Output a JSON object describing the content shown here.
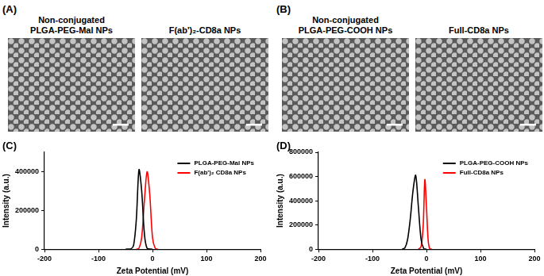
{
  "image_panels": [
    {
      "label": "(A)",
      "images": [
        {
          "caption": [
            "Non-conjugated",
            "PLGA-PEG-Mal NPs"
          ]
        },
        {
          "caption": [
            "F(ab')₂-CD8a  NPs"
          ]
        }
      ]
    },
    {
      "label": "(B)",
      "images": [
        {
          "caption": [
            "Non-conjugated",
            "PLGA-PEG-COOH  NPs"
          ]
        },
        {
          "caption": [
            "Full-CD8a  NPs"
          ]
        }
      ]
    }
  ],
  "chart_data": [
    {
      "type": "line",
      "title": "(C)",
      "x_label": "Zeta Potential (mV)",
      "y_label": "Intensity (a.u.)",
      "xlim": [
        -200,
        200
      ],
      "xticks": [
        -200,
        -100,
        0,
        100,
        200
      ],
      "ylim": [
        0,
        500000
      ],
      "yticks": [
        0,
        200000,
        400000
      ],
      "grid": false,
      "legend": "upper right",
      "series": [
        {
          "name": "PLGA-PEG-Mal NPs",
          "color": "#000000",
          "x": [
            -50,
            -40,
            -35,
            -30,
            -25,
            -20,
            -15,
            -10,
            0
          ],
          "values": [
            0,
            2000,
            20000,
            150000,
            410000,
            300000,
            80000,
            5000,
            0
          ]
        },
        {
          "name": "F(ab')₂ CD8a NPs",
          "color": "#ff0000",
          "x": [
            -30,
            -25,
            -20,
            -15,
            -10,
            -5,
            0,
            5,
            10
          ],
          "values": [
            0,
            5000,
            60000,
            250000,
            400000,
            280000,
            60000,
            5000,
            0
          ]
        }
      ]
    },
    {
      "type": "line",
      "title": "(D)",
      "x_label": "Zeta Potential (mV)",
      "y_label": "Intensity (a.u.)",
      "xlim": [
        -200,
        200
      ],
      "xticks": [
        -200,
        -100,
        0,
        100,
        200
      ],
      "ylim": [
        0,
        800000
      ],
      "yticks": [
        0,
        200000,
        400000,
        600000,
        800000
      ],
      "grid": false,
      "legend": "upper right",
      "series": [
        {
          "name": "PLGA-PEG-COOH NPs",
          "color": "#000000",
          "x": [
            -45,
            -40,
            -35,
            -30,
            -25,
            -20,
            -15,
            -10,
            -5,
            0
          ],
          "values": [
            0,
            10000,
            80000,
            250000,
            480000,
            610000,
            350000,
            80000,
            5000,
            0
          ]
        },
        {
          "name": "Full-CD8a NPs",
          "color": "#ff0000",
          "x": [
            -15,
            -10,
            -6,
            -3,
            0,
            3,
            6,
            10
          ],
          "values": [
            0,
            20000,
            200000,
            575000,
            350000,
            80000,
            5000,
            0
          ]
        }
      ]
    }
  ]
}
